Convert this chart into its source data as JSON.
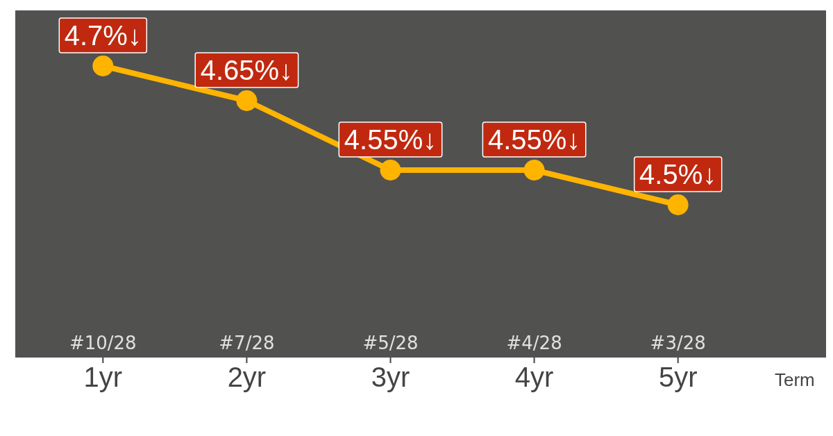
{
  "chart_data": {
    "type": "line",
    "xlabel": "Term",
    "categories": [
      "1yr",
      "2yr",
      "3yr",
      "4yr",
      "5yr"
    ],
    "series": [
      {
        "color": "#ffb400",
        "values": [
          4.7,
          4.65,
          4.55,
          4.55,
          4.5
        ],
        "value_labels": [
          "4.7%↓",
          "4.65%↓",
          "4.55%↓",
          "4.55%↓",
          "4.5%↓"
        ]
      }
    ],
    "annotations": [
      "#10/28",
      "#7/28",
      "#5/28",
      "#4/28",
      "#3/28"
    ],
    "ylim": [
      4.28,
      4.78
    ],
    "tick_labels": "x",
    "marker": "circle",
    "line_style": "solid"
  }
}
